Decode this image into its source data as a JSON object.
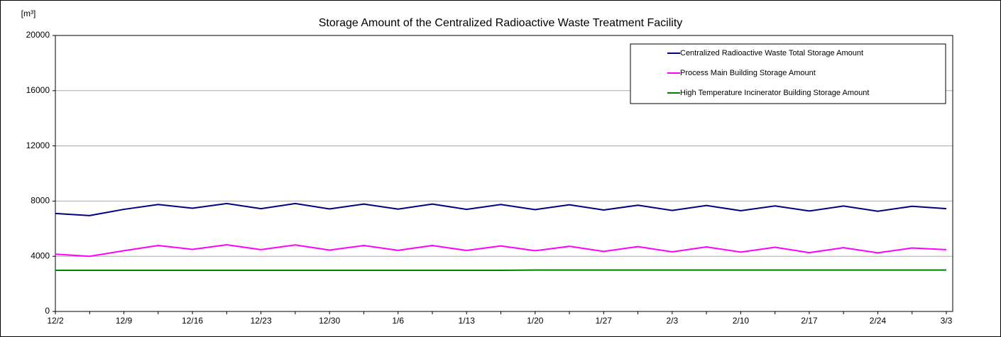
{
  "chart_data": {
    "type": "line",
    "title": "Storage Amount of the Centralized Radioactive Waste Treatment Facility",
    "y_label": "[m³]",
    "categories": [
      "12/2",
      null,
      "12/9",
      null,
      "12/16",
      null,
      "12/23",
      null,
      "12/30",
      null,
      "1/6",
      null,
      "1/13",
      null,
      "1/20",
      null,
      "1/27",
      null,
      "2/3",
      null,
      "2/10",
      null,
      "2/17",
      null,
      "2/24",
      null,
      "3/3"
    ],
    "series": [
      {
        "name": "Centralized Radioactive Waste Total Storage Amount",
        "color": "#000080",
        "values": [
          7100,
          6950,
          7400,
          7750,
          7480,
          7820,
          7450,
          7820,
          7430,
          7780,
          7420,
          7780,
          7400,
          7750,
          7380,
          7730,
          7350,
          7700,
          7320,
          7680,
          7300,
          7650,
          7280,
          7640,
          7260,
          7620,
          7450
        ]
      },
      {
        "name": "Process Main Building Storage Amount",
        "color": "#ff00ff",
        "values": [
          4150,
          4000,
          4400,
          4780,
          4500,
          4830,
          4480,
          4820,
          4450,
          4780,
          4430,
          4780,
          4420,
          4750,
          4400,
          4720,
          4350,
          4700,
          4320,
          4680,
          4300,
          4650,
          4260,
          4620,
          4250,
          4600,
          4480
        ]
      },
      {
        "name": "High Temperature Incinerator Building Storage Amount",
        "color": "#008000",
        "values": [
          2980,
          2980,
          2980,
          2980,
          2980,
          2980,
          2980,
          2980,
          2980,
          2980,
          2980,
          2980,
          2980,
          2980,
          3000,
          3000,
          3000,
          3000,
          3000,
          3000,
          3000,
          3000,
          3000,
          3000,
          3000,
          3000,
          3000
        ]
      }
    ],
    "ylim": [
      0,
      20000
    ],
    "yticks": [
      0,
      4000,
      8000,
      12000,
      16000,
      20000
    ],
    "grid": true,
    "legend": "upper right"
  }
}
